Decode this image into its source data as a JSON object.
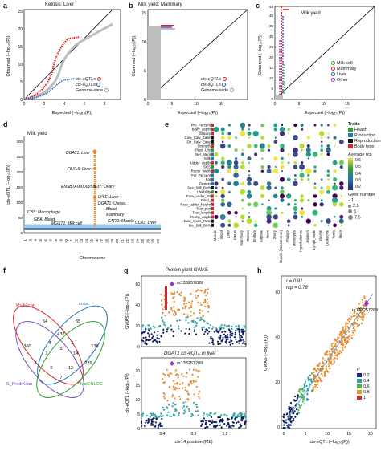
{
  "panels": {
    "a": {
      "label": "a",
      "title": "Ketosis: Liver",
      "xlabel": "Expected (−log₁₀(P))",
      "ylabel": "Observed (−log₁₀(P))",
      "xticks": [
        "0",
        "2",
        "4",
        "6",
        "8"
      ],
      "yticks": [
        "0",
        "5",
        "10",
        "15",
        "20",
        "25"
      ],
      "legend": [
        "cis-eQTLs",
        "cis-sQTLs",
        "Genome-wide"
      ]
    },
    "b": {
      "label": "b",
      "title": "Milk yield: Mammary",
      "xlabel": "Expected (−log₁₀(P))",
      "ylabel": "Observed (−log₁₀(P))",
      "xticks": [
        "0",
        "5",
        "10",
        "15"
      ],
      "yticks": [
        "0",
        "5",
        "10",
        "15"
      ],
      "legend": [
        "cis-eQTLs",
        "cis-sQTLs",
        "Genome-wide"
      ]
    },
    "c": {
      "label": "c",
      "title": "Milk yield",
      "xlabel": "Expected (−log₁₀(P))",
      "ylabel": "Observed (−log₁₀(P))",
      "xticks": [
        "0",
        "5",
        "10",
        "15"
      ],
      "yticks": [
        "0",
        "5",
        "10",
        "15",
        "20",
        "25",
        "30",
        "35",
        "40",
        "45"
      ],
      "legend": [
        "Milk cell",
        "Mammary",
        "Liver",
        "Other"
      ]
    },
    "d": {
      "label": "d",
      "title": "Milk yield",
      "xlabel": "Chromosome",
      "ylabel": "cis-eQTL (−log₁₀(P))",
      "yticks": [
        "0",
        "50",
        "100",
        "150",
        "200",
        "250",
        "300"
      ],
      "chromosomes": [
        "1",
        "3",
        "4",
        "5",
        "6",
        "7",
        "8",
        "9",
        "10",
        "11",
        "12",
        "13",
        "14",
        "15",
        "16",
        "17",
        "18",
        "19",
        "20",
        "21",
        "22",
        "23",
        "24",
        "25",
        "26",
        "28",
        "29"
      ],
      "annotations": [
        "DGAT1: Liver",
        "FBXL6: Liver",
        "ENSBTA00000053637: Ovary",
        "LY6E: Liver",
        "DGAT1: Uterus,",
        "Blood,",
        "Mammary",
        "CARD: Muscle",
        "CLN3: Liver",
        "CBS: Macrophage",
        "GBA: Blood",
        "MGST1: Milk cell"
      ]
    },
    "e": {
      "label": "e",
      "traits": [
        "Pro_Percent",
        "Body_depth",
        "Stature",
        "Cow_Calv_Ease",
        "Dtr_Calv_Ease",
        "Strength",
        "Prod_Life",
        "Net_Merit",
        "Milk",
        "Udder_depth",
        "SCS",
        "Rump_width",
        "Fat_Percent",
        "Fat",
        "Protein",
        "Sire_Still_Birth",
        "Livability",
        "Fore_udder_att",
        "Final_",
        "Rear_udder_height",
        "Teat_plat",
        "Teat_length",
        "Rump_angle",
        "Cow_Conc_Rate",
        "Dtr_Still_Birth"
      ],
      "tissues": [
        "Muscle",
        "Blood",
        "Liver",
        "Uterus",
        "Mammary",
        "Rumen",
        "Embryo",
        "Adipose",
        "Ileum",
        "Ovary",
        "Muscle (Ceasar et al.)",
        "Pituitary",
        "Monocytes",
        "Hypothalamus",
        "Jejunum",
        "Lymph_node",
        "Oocyte",
        "Leukocyte",
        "Testis",
        "Ileum"
      ],
      "trait_types": [
        {
          "name": "Health",
          "color": "#2ca02c"
        },
        {
          "name": "Production",
          "color": "#1f77b4"
        },
        {
          "name": "Reproduction",
          "color": "#111111"
        },
        {
          "name": "Body type",
          "color": "#d62728"
        }
      ],
      "legend_traits_title": "Traits",
      "legend_rcp_title": "Average rcp",
      "rcp_ticks": [
        "0.6",
        "0.5",
        "0.4",
        "0.3",
        "0.2"
      ],
      "legend_gene_title": "Gene number",
      "gene_ticks": [
        "1",
        "2.5",
        "5",
        "7.5"
      ]
    },
    "f": {
      "label": "f",
      "sets": [
        "MultiXcan",
        "coloc",
        "S_PrediXcan",
        "fastENLOC"
      ],
      "counts": [
        "64",
        "65",
        "360",
        "437",
        "136",
        "4",
        "3",
        "3",
        "1",
        "5",
        "14",
        "279",
        "0",
        "12",
        "7"
      ]
    },
    "g": {
      "label": "g",
      "top_title": "Protein yield GWAS",
      "top_ylabel": "GWAS (−log₁₀(P))",
      "bottom_title": "DGAT1 cis-eQTL in liver",
      "bottom_ylabel": "cis-eQTL (−log₁₀(P))",
      "snp": "rs133257289",
      "xlabel": "chr14 position (Mb)",
      "xticks": [
        "0.4",
        "0.8",
        "1.2"
      ],
      "top_yticks": [
        "0",
        "20",
        "40",
        "60"
      ],
      "bottom_yticks": [
        "0",
        "5",
        "10",
        "15",
        "20"
      ]
    },
    "h": {
      "label": "h",
      "r_text": "r = 0.91",
      "rcp_text": "rcp = 0.78",
      "snp": "rs133257289",
      "xlabel": "cis-eQTL (−log₁₀(P))",
      "ylabel": "GWAS (−log₁₀(P))",
      "xticks": [
        "0",
        "5",
        "10",
        "15",
        "20"
      ],
      "yticks": [
        "0",
        "20",
        "40",
        "60"
      ],
      "legend_title": "r²",
      "legend_items": [
        "0.2",
        "0.4",
        "0.6",
        "0.8",
        "1"
      ],
      "legend_colors": [
        "#1a237e",
        "#2e9e9e",
        "#4caf50",
        "#e39b2d",
        "#d62728"
      ]
    }
  },
  "colors": {
    "eqtl": "#d62728",
    "sqtl": "#1f5fbf",
    "genome": "#bdbdbd",
    "orange": "#e6892a",
    "teal": "#2aa3a3",
    "navy": "#0d1b5e",
    "purple": "#9b30c9"
  }
}
